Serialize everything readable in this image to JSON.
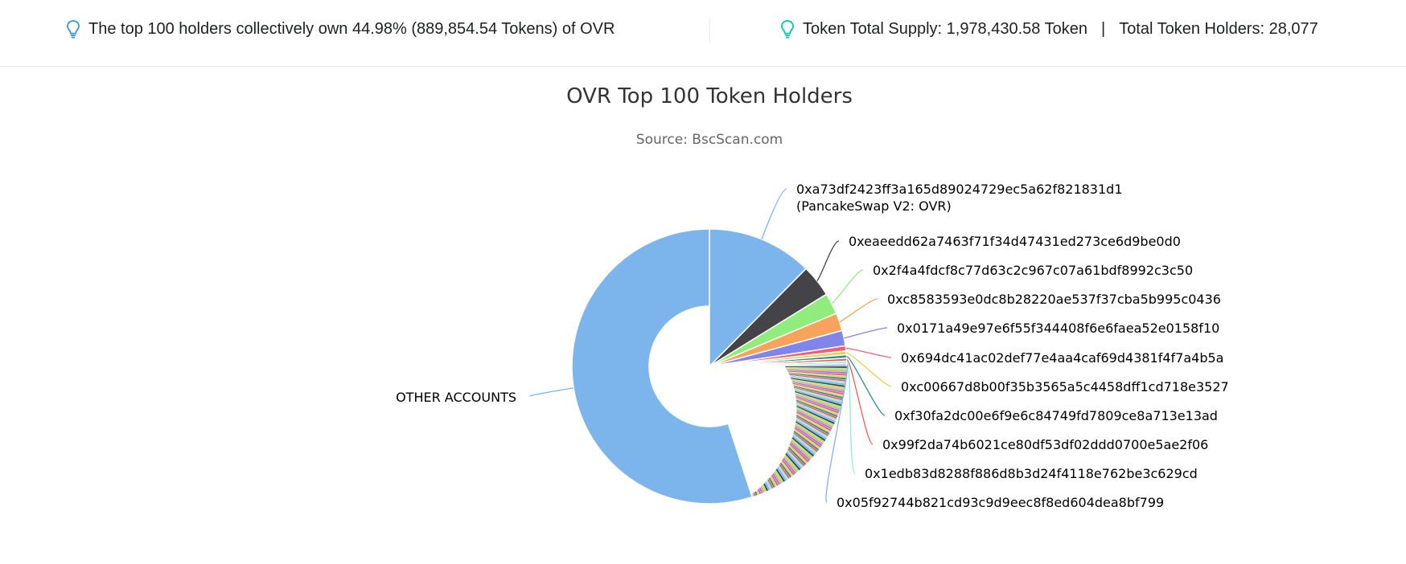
{
  "header": {
    "left_text": "The top 100 holders collectively own 44.98% (889,854.54 Tokens) of OVR",
    "right_supply": "Token Total Supply: 1,978,430.58 Token",
    "right_sep": "|",
    "right_holders": "Total Token Holders: 28,077",
    "left_icon": "lightbulb-icon",
    "right_icon": "lightbulb-icon",
    "left_icon_color": "#3498db",
    "right_icon_color": "#00c9a7"
  },
  "chart_data": {
    "type": "pie",
    "title": "OVR Top 100 Token Holders",
    "subtitle": "Source: BscScan.com",
    "series": [
      {
        "name": "0xa73df2423ff3a165d89024729ec5a62f821831d1",
        "name_line2": "(PancakeSwap V2: OVR)",
        "value": 12.4,
        "color": "#7cb5ec"
      },
      {
        "name": "0xeaeedd62a7463f71f34d47431ed273ce6d9be0d0",
        "value": 3.8,
        "color": "#434348"
      },
      {
        "name": "0x2f4a4fdcf8c77d63c2c967c07a61bdf8992c3c50",
        "value": 2.5,
        "color": "#90ed7d"
      },
      {
        "name": "0xc8583593e0dc8b28220ae537f37cba5b995c0436",
        "value": 2.1,
        "color": "#f7a35c"
      },
      {
        "name": "0x0171a49e97e6f55f344408f6e6faea52e0158f10",
        "value": 1.8,
        "color": "#8085e9"
      },
      {
        "name": "0x694dc41ac02def77e4aa4caf69d4381f4f7a4b5a",
        "value": 0.6,
        "color": "#f15c80"
      },
      {
        "name": "0xc00667d8b00f35b3565a5c4458dff1cd718e3527",
        "value": 0.45,
        "color": "#e4d354"
      },
      {
        "name": "0xf30fa2dc00e6f9e6c84749fd7809ce8a713e13ad",
        "value": 0.4,
        "color": "#2b908f"
      },
      {
        "name": "0x99f2da74b6021ce80df53df02ddd0700e5ae2f06",
        "value": 0.35,
        "color": "#f45b5b"
      },
      {
        "name": "0x1edb83d8288f886d8b3d24f4118e762be3c629cd",
        "value": 0.3,
        "color": "#91e8e1"
      },
      {
        "name": "0x05f92744b821cd93c9d9eec8f8ed604dea8bf799",
        "value": 0.28,
        "color": "#7cb5ec"
      },
      {
        "name": "OTHER ACCOUNTS",
        "value": 55.02,
        "color": "#7cb5ec"
      }
    ],
    "remaining_holders_value": 20.0,
    "remaining_holders_count": 89,
    "legend": "none"
  }
}
